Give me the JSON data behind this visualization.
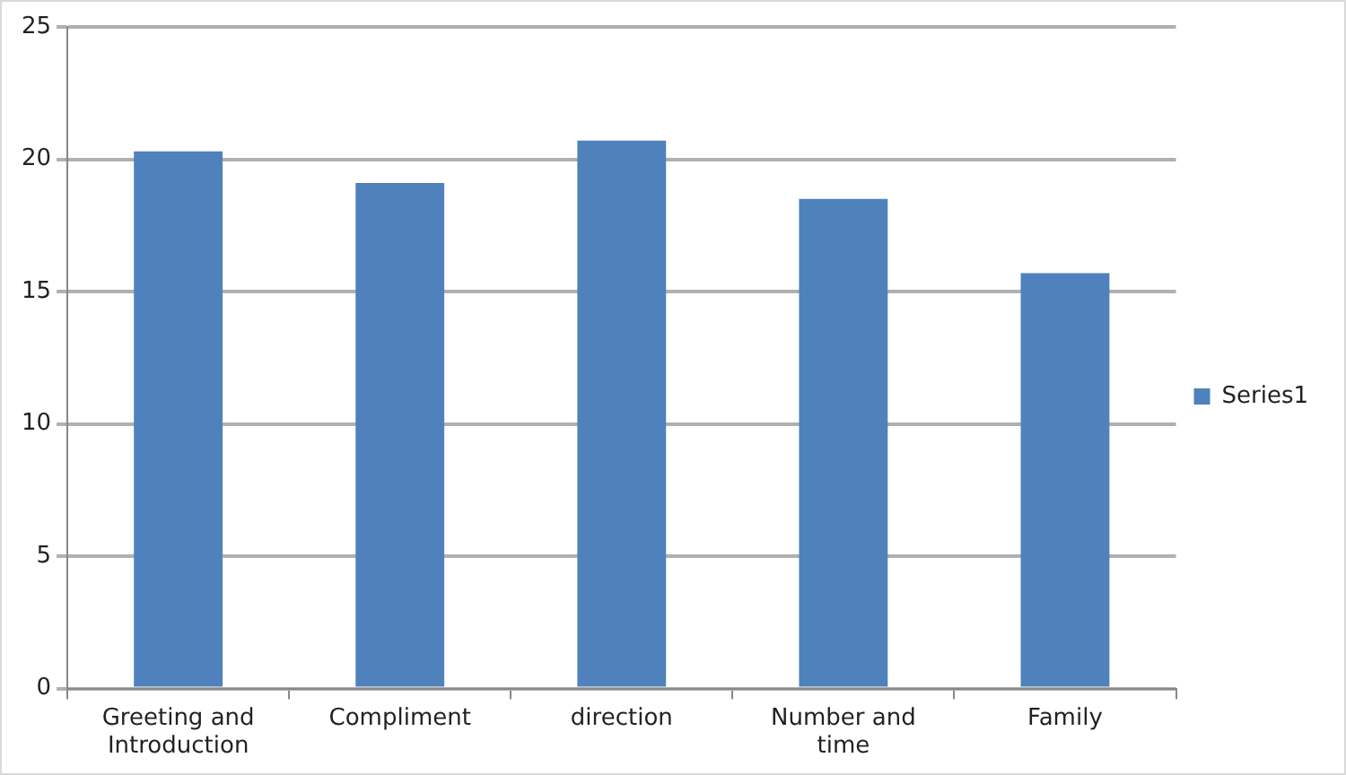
{
  "chart_data": {
    "type": "bar",
    "categories": [
      "Greeting and Introduction",
      "Compliment",
      "direction",
      "Number and time",
      "Family"
    ],
    "series": [
      {
        "name": "Series1",
        "color": "#4f81bd",
        "values": [
          20.3,
          19.1,
          20.7,
          18.5,
          15.7
        ]
      }
    ],
    "ylim": [
      0,
      25
    ],
    "yticks": [
      0,
      5,
      10,
      15,
      20,
      25
    ],
    "grid": "y",
    "legend": "right"
  }
}
